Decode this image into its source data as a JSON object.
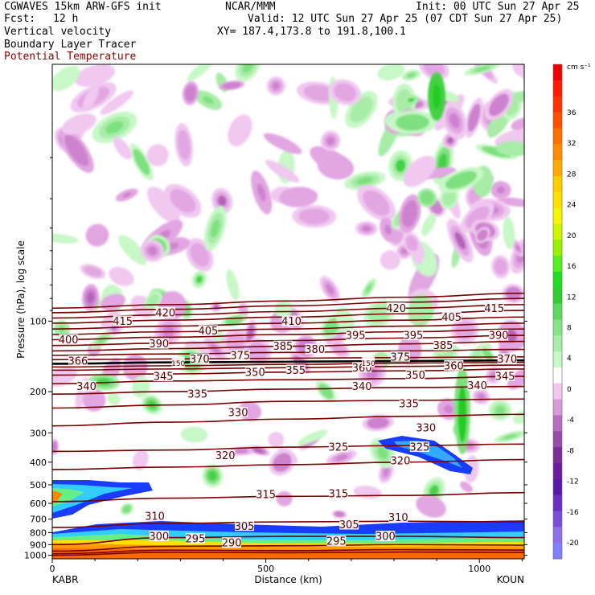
{
  "header": {
    "model": "CGWAVES 15km ARW-GFS init",
    "org": "NCAR/MMM",
    "init": "Init: 00 UTC Sun 27 Apr 25",
    "fcst_label": "Fcst:",
    "fcst_value": "12 h",
    "valid": "Valid: 12 UTC Sun 27 Apr 25 (07 CDT Sun 27 Apr 25)",
    "field1": "Vertical velocity",
    "xy": "XY= 187.4,173.8 to 191.8,100.1",
    "field2": "Boundary Layer Tracer",
    "field3": "Potential Temperature"
  },
  "colorbar": {
    "units": "cm s⁻¹",
    "levels": [
      -22,
      -20,
      -18,
      -16,
      -14,
      -12,
      -10,
      -8,
      -6,
      -4,
      -2,
      2,
      4,
      6,
      8,
      10,
      12,
      14,
      16,
      18,
      20,
      22,
      24,
      26,
      28,
      30,
      32,
      34,
      36,
      38,
      40
    ],
    "labels": [
      "36",
      "32",
      "28",
      "24",
      "20",
      "16",
      "12",
      "8",
      "4",
      "0",
      "-4",
      "-8",
      "-12",
      "-16",
      "-20"
    ],
    "colors": [
      "#7f7fff",
      "#8f6fe8",
      "#7a4fd8",
      "#6a2fc0",
      "#5a1aa8",
      "#6b1c9c",
      "#7d2b95",
      "#9a4aa8",
      "#b86cc0",
      "#d89ad8",
      "#f0c8f0",
      "#ffffff",
      "#c8f7c8",
      "#a8eca8",
      "#86e486",
      "#5fd85f",
      "#33cc33",
      "#22dd22",
      "#55ee22",
      "#99f000",
      "#ccf500",
      "#f5f500",
      "#ffe000",
      "#ffcc00",
      "#ffaa00",
      "#ff8c00",
      "#ff7000",
      "#ff5000",
      "#ff3300",
      "#ff1a00",
      "#ee0000"
    ],
    "white_index": 11
  },
  "chart_data": {
    "type": "cross-section contour",
    "ylabel": "Pressure (hPa), log scale",
    "xlabel": "Distance (km)",
    "x_endpoints": [
      "KABR",
      "KOUN"
    ],
    "xlim": [
      0,
      1105
    ],
    "ylim_hpa": [
      1035,
      8
    ],
    "x_ticks": [
      0,
      500,
      1000
    ],
    "y_ticks": [
      100,
      200,
      300,
      400,
      500,
      600,
      700,
      800,
      900,
      1000
    ],
    "theta_contours_K": [
      {
        "theta": 290,
        "p": [
          1000,
          970,
          975,
          968,
          972
        ]
      },
      {
        "theta": 295,
        "p": [
          985,
          950,
          955,
          945,
          950
        ]
      },
      {
        "theta": 300,
        "p": [
          960,
          915,
          910,
          900,
          905
        ]
      },
      {
        "theta": 305,
        "p": [
          900,
          840,
          830,
          830,
          840
        ]
      },
      {
        "theta": 310,
        "p": [
          760,
          730,
          720,
          715,
          720
        ]
      },
      {
        "theta": 315,
        "p": [
          590,
          570,
          560,
          555,
          540
        ]
      },
      {
        "theta": 320,
        "p": [
          430,
          420,
          410,
          400,
          390
        ]
      },
      {
        "theta": 325,
        "p": [
          360,
          355,
          345,
          340,
          335
        ]
      },
      {
        "theta": 330,
        "p": [
          280,
          270,
          262,
          255,
          250
        ]
      },
      {
        "theta": 335,
        "p": [
          235,
          228,
          220,
          218,
          215
        ]
      },
      {
        "theta": 340,
        "p": [
          205,
          200,
          195,
          192,
          190
        ]
      },
      {
        "theta": 345,
        "p": [
          185,
          180,
          178,
          176,
          172
        ]
      },
      {
        "theta": 350,
        "p": [
          170,
          168,
          165,
          163,
          160
        ]
      },
      {
        "theta": 355,
        "p": [
          162,
          160,
          158,
          156,
          154
        ]
      },
      {
        "theta": 360,
        "p": [
          157,
          155,
          153,
          151,
          150
        ]
      },
      {
        "theta": 365,
        "p": [
          152,
          150,
          149,
          148,
          147
        ]
      },
      {
        "theta": 370,
        "p": [
          146,
          145,
          144,
          143,
          142
        ]
      },
      {
        "theta": 375,
        "p": [
          140,
          138,
          136,
          134,
          132
        ]
      },
      {
        "theta": 380,
        "p": [
          134,
          131,
          128,
          125,
          122
        ]
      },
      {
        "theta": 385,
        "p": [
          127,
          124,
          121,
          118,
          115
        ]
      },
      {
        "theta": 390,
        "p": [
          120,
          117,
          114,
          111,
          108
        ]
      },
      {
        "theta": 395,
        "p": [
          114,
          111,
          108,
          105,
          102
        ]
      },
      {
        "theta": 400,
        "p": [
          108,
          105,
          102,
          99,
          96
        ]
      },
      {
        "theta": 405,
        "p": [
          102,
          99,
          96,
          93,
          90
        ]
      },
      {
        "theta": 410,
        "p": [
          97,
          94,
          91,
          88,
          85
        ]
      },
      {
        "theta": 415,
        "p": [
          92,
          89,
          86,
          83,
          80
        ]
      },
      {
        "theta": 420,
        "p": [
          88,
          85,
          82,
          79,
          76
        ]
      }
    ],
    "theta_x_km": [
      0,
      275,
      550,
      825,
      1105
    ],
    "contour_labels": [
      {
        "text": "400",
        "x": 38,
        "p": 120
      },
      {
        "text": "415",
        "x": 165,
        "p": 100
      },
      {
        "text": "420",
        "x": 265,
        "p": 92
      },
      {
        "text": "405",
        "x": 365,
        "p": 110
      },
      {
        "text": "390",
        "x": 250,
        "p": 125
      },
      {
        "text": "370",
        "x": 345,
        "p": 145
      },
      {
        "text": "375",
        "x": 440,
        "p": 140
      },
      {
        "text": "385",
        "x": 540,
        "p": 128
      },
      {
        "text": "380",
        "x": 615,
        "p": 132
      },
      {
        "text": "410",
        "x": 560,
        "p": 100
      },
      {
        "text": "395",
        "x": 710,
        "p": 115
      },
      {
        "text": "420",
        "x": 805,
        "p": 88
      },
      {
        "text": "395",
        "x": 845,
        "p": 115
      },
      {
        "text": "405",
        "x": 935,
        "p": 96
      },
      {
        "text": "385",
        "x": 915,
        "p": 127
      },
      {
        "text": "375",
        "x": 815,
        "p": 142
      },
      {
        "text": "415",
        "x": 1035,
        "p": 88
      },
      {
        "text": "390",
        "x": 1045,
        "p": 115
      },
      {
        "text": "370",
        "x": 1065,
        "p": 145
      },
      {
        "text": "366",
        "x": 60,
        "p": 148
      },
      {
        "text": "340",
        "x": 80,
        "p": 190
      },
      {
        "text": "345",
        "x": 260,
        "p": 172
      },
      {
        "text": "335",
        "x": 340,
        "p": 205
      },
      {
        "text": "350",
        "x": 475,
        "p": 165
      },
      {
        "text": "355",
        "x": 570,
        "p": 162
      },
      {
        "text": "360",
        "x": 725,
        "p": 158
      },
      {
        "text": "340",
        "x": 725,
        "p": 190
      },
      {
        "text": "350",
        "x": 850,
        "p": 170
      },
      {
        "text": "360",
        "x": 940,
        "p": 155
      },
      {
        "text": "340",
        "x": 995,
        "p": 188
      },
      {
        "text": "345",
        "x": 1060,
        "p": 172
      },
      {
        "text": "330",
        "x": 435,
        "p": 245
      },
      {
        "text": "335",
        "x": 835,
        "p": 225
      },
      {
        "text": "330",
        "x": 875,
        "p": 285
      },
      {
        "text": "325",
        "x": 670,
        "p": 345
      },
      {
        "text": "325",
        "x": 860,
        "p": 345
      },
      {
        "text": "320",
        "x": 405,
        "p": 375
      },
      {
        "text": "320",
        "x": 815,
        "p": 395
      },
      {
        "text": "315",
        "x": 500,
        "p": 550
      },
      {
        "text": "315",
        "x": 670,
        "p": 545
      },
      {
        "text": "310",
        "x": 240,
        "p": 680
      },
      {
        "text": "310",
        "x": 810,
        "p": 690
      },
      {
        "text": "305",
        "x": 450,
        "p": 750
      },
      {
        "text": "305",
        "x": 695,
        "p": 740
      },
      {
        "text": "300",
        "x": 250,
        "p": 830
      },
      {
        "text": "295",
        "x": 335,
        "p": 850
      },
      {
        "text": "290",
        "x": 420,
        "p": 885
      },
      {
        "text": "295",
        "x": 665,
        "p": 870
      },
      {
        "text": "300",
        "x": 780,
        "p": 830
      },
      {
        "text": "150",
        "x": 295,
        "p": 150
      },
      {
        "text": "150",
        "x": 740,
        "p": 150
      }
    ]
  }
}
